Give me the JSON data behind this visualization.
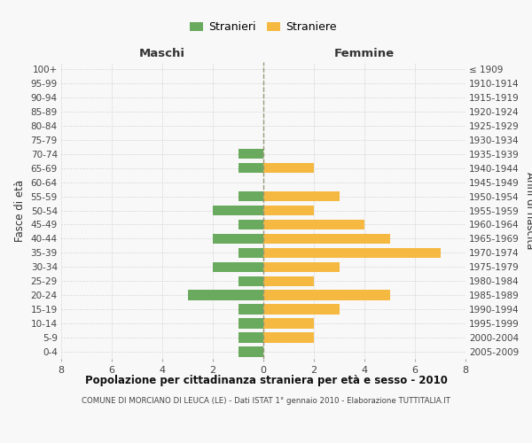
{
  "age_groups_bottom_to_top": [
    "0-4",
    "5-9",
    "10-14",
    "15-19",
    "20-24",
    "25-29",
    "30-34",
    "35-39",
    "40-44",
    "45-49",
    "50-54",
    "55-59",
    "60-64",
    "65-69",
    "70-74",
    "75-79",
    "80-84",
    "85-89",
    "90-94",
    "95-99",
    "100+"
  ],
  "birth_years_bottom_to_top": [
    "2005-2009",
    "2000-2004",
    "1995-1999",
    "1990-1994",
    "1985-1989",
    "1980-1984",
    "1975-1979",
    "1970-1974",
    "1965-1969",
    "1960-1964",
    "1955-1959",
    "1950-1954",
    "1945-1949",
    "1940-1944",
    "1935-1939",
    "1930-1934",
    "1925-1929",
    "1920-1924",
    "1915-1919",
    "1910-1914",
    "≤ 1909"
  ],
  "males_bottom_to_top": [
    1,
    1,
    1,
    1,
    3,
    1,
    2,
    1,
    2,
    1,
    2,
    1,
    0,
    1,
    1,
    0,
    0,
    0,
    0,
    0,
    0
  ],
  "females_bottom_to_top": [
    0,
    2,
    2,
    3,
    5,
    2,
    3,
    7,
    5,
    4,
    2,
    3,
    0,
    2,
    0,
    0,
    0,
    0,
    0,
    0,
    0
  ],
  "male_color": "#6aaa5e",
  "female_color": "#f5b942",
  "title": "Popolazione per cittadinanza straniera per età e sesso - 2010",
  "subtitle": "COMUNE DI MORCIANO DI LEUCA (LE) - Dati ISTAT 1° gennaio 2010 - Elaborazione TUTTITALIA.IT",
  "header_left": "Maschi",
  "header_right": "Femmine",
  "ylabel_left": "Fasce di età",
  "ylabel_right": "Anni di nascita",
  "xlim": 8,
  "legend_labels": [
    "Stranieri",
    "Straniere"
  ],
  "background_color": "#f8f8f8",
  "grid_color": "#cccccc"
}
